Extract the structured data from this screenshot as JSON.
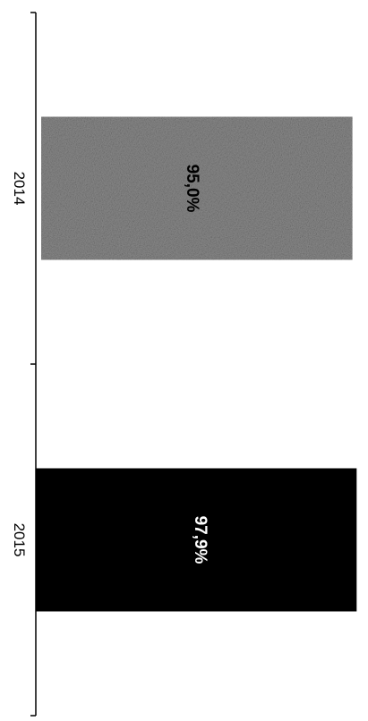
{
  "chart_data": {
    "type": "bar",
    "orientation": "horizontal",
    "categories": [
      "2014",
      "2015"
    ],
    "values": [
      95.0,
      97.9
    ],
    "value_labels": [
      "95,0%",
      "97,9%"
    ],
    "xlim": [
      0,
      100
    ],
    "grid": false,
    "colors": [
      "#8c8c8c",
      "#000000"
    ],
    "label_colors": [
      "#000000",
      "#ffffff"
    ]
  }
}
